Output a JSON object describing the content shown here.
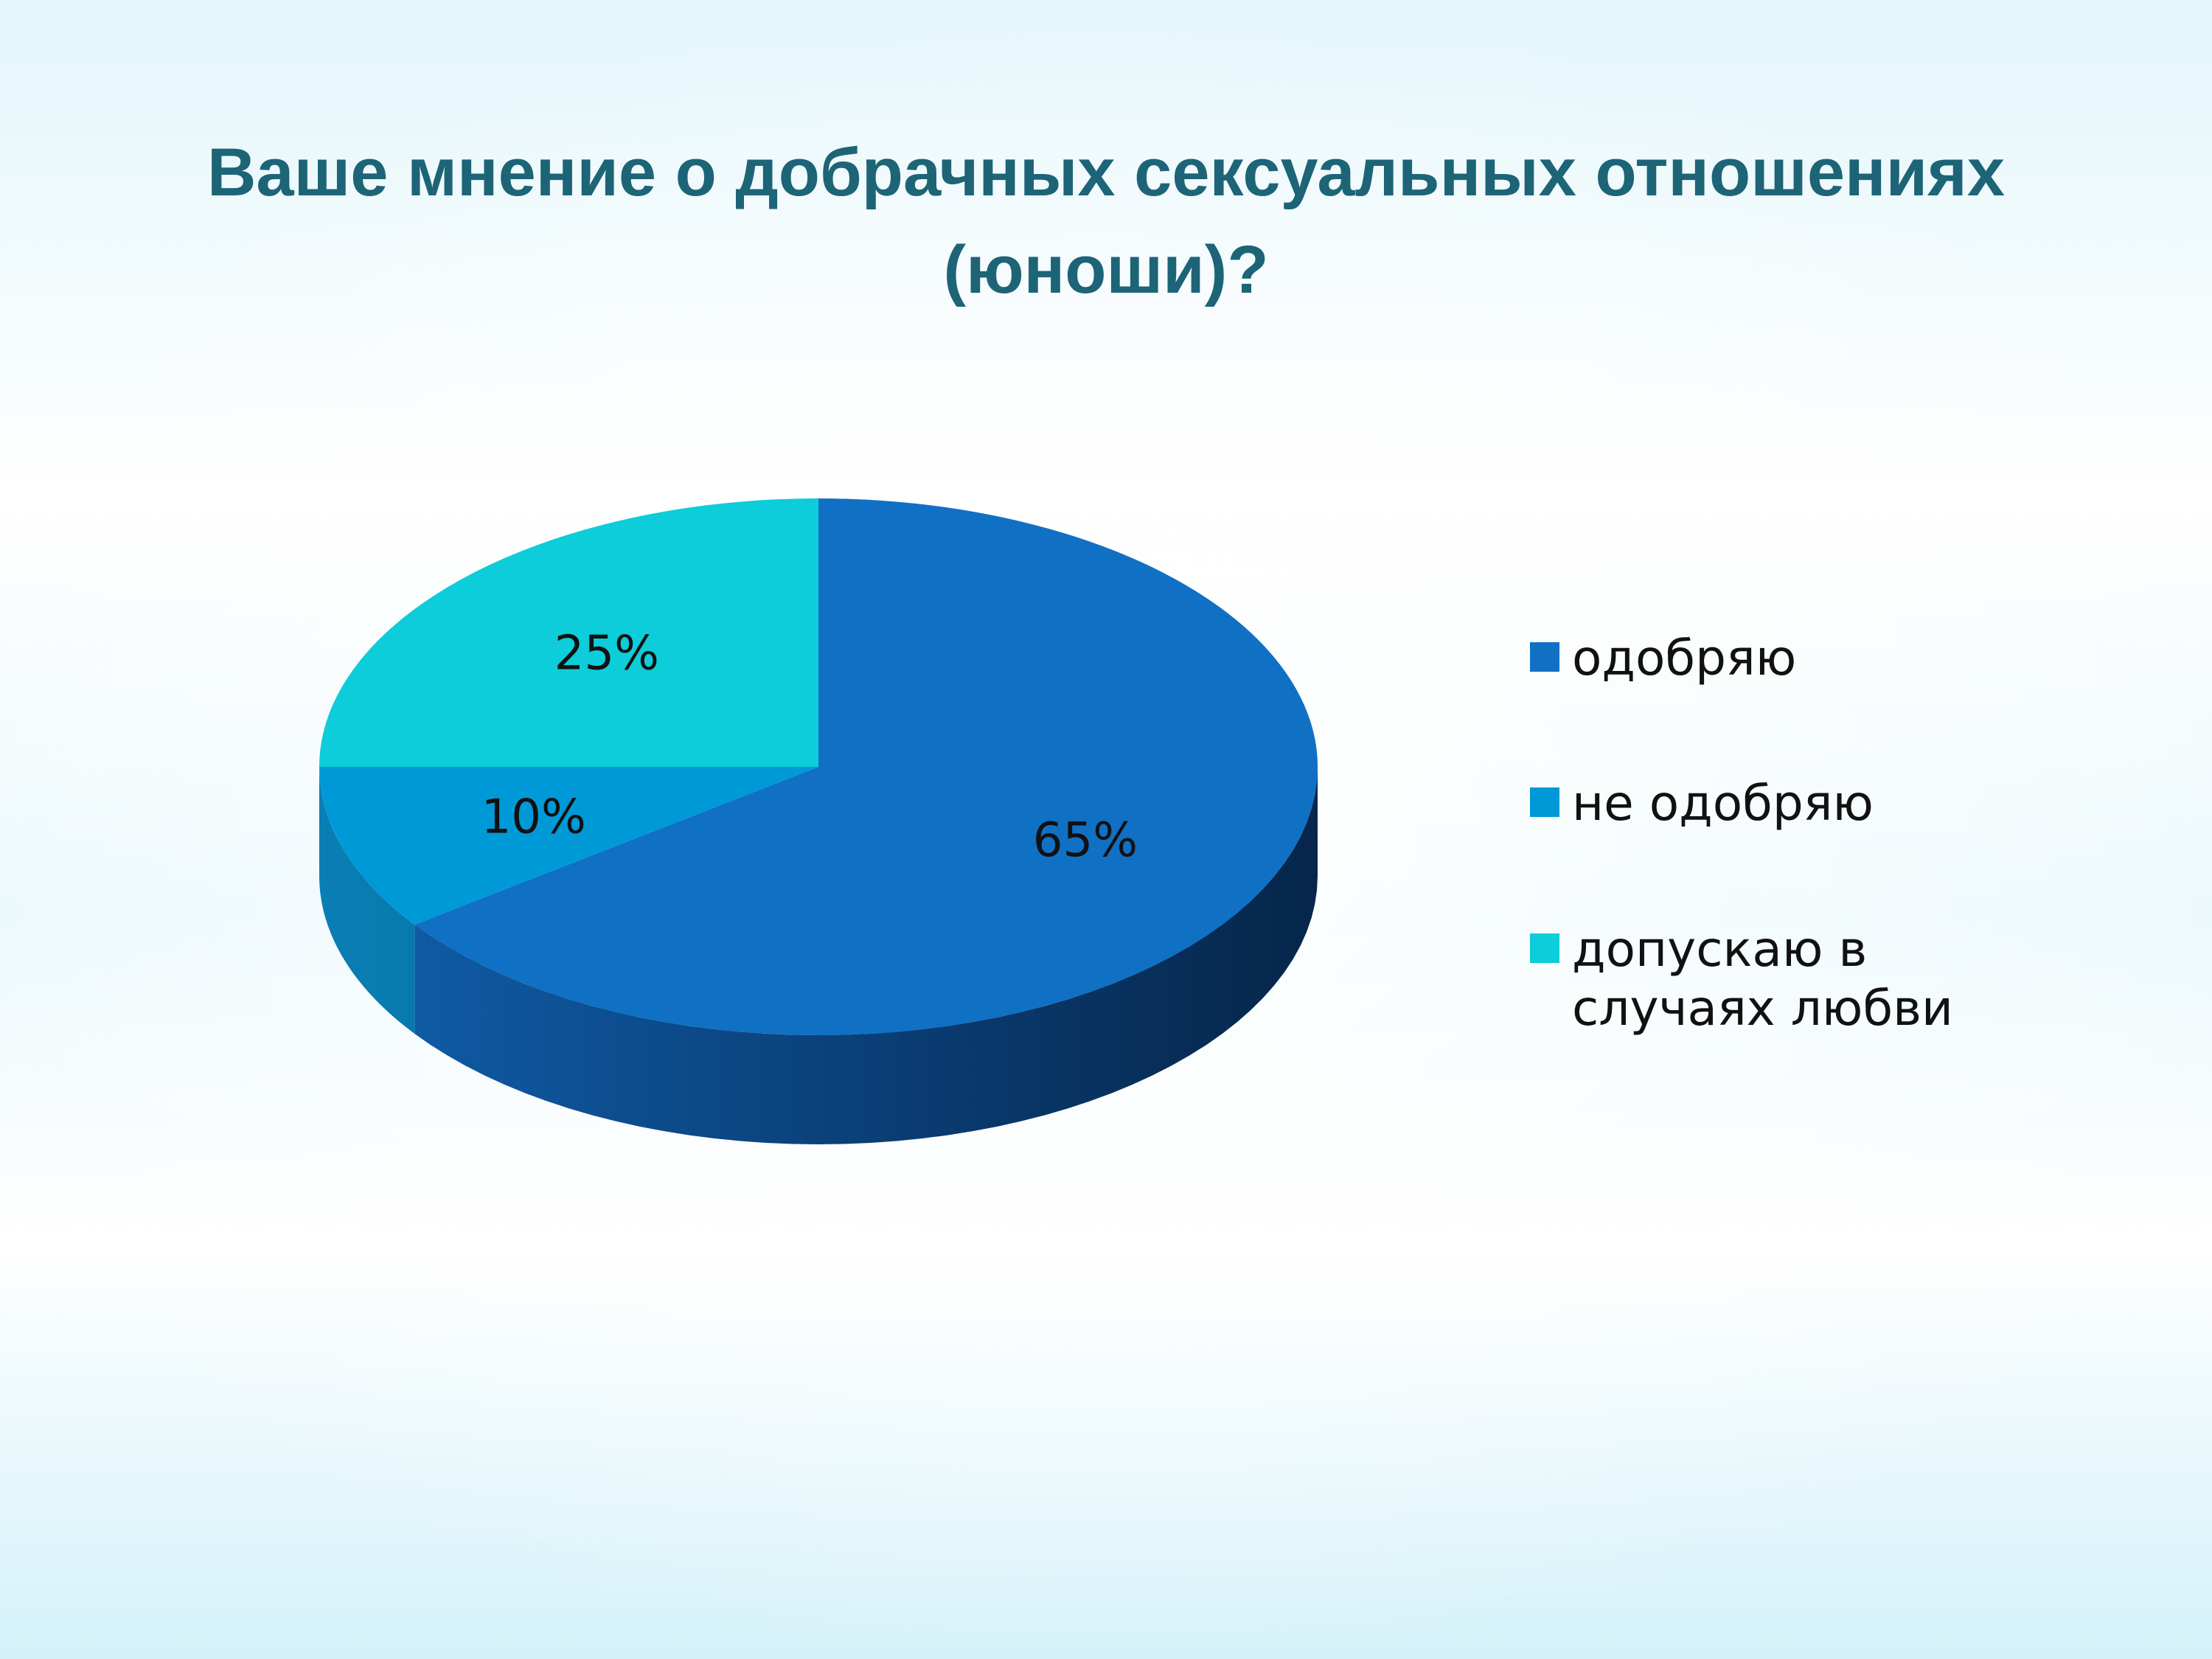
{
  "title": {
    "line1": "Ваше мнение о добрачных сексуальных отношениях",
    "line2": "(юноши)?"
  },
  "chart_data": {
    "type": "pie",
    "style": "3d",
    "title": "Ваше мнение о добрачных сексуальных отношениях (юноши)?",
    "legend_position": "right",
    "slices": [
      {
        "name": "одобряю",
        "value": 65,
        "label": "65%",
        "color": "#1070c4"
      },
      {
        "name": "не одобряю",
        "value": 10,
        "label": "10%",
        "color": "#0099d8"
      },
      {
        "name": "допускаю в случаях любви",
        "value": 25,
        "label": "25%",
        "color": "#0ccdd9"
      }
    ],
    "legend": [
      {
        "lines": [
          "одобряю"
        ]
      },
      {
        "lines": [
          "не одобряю"
        ]
      },
      {
        "lines": [
          "допускаю в",
          "случаях любви"
        ]
      }
    ]
  }
}
